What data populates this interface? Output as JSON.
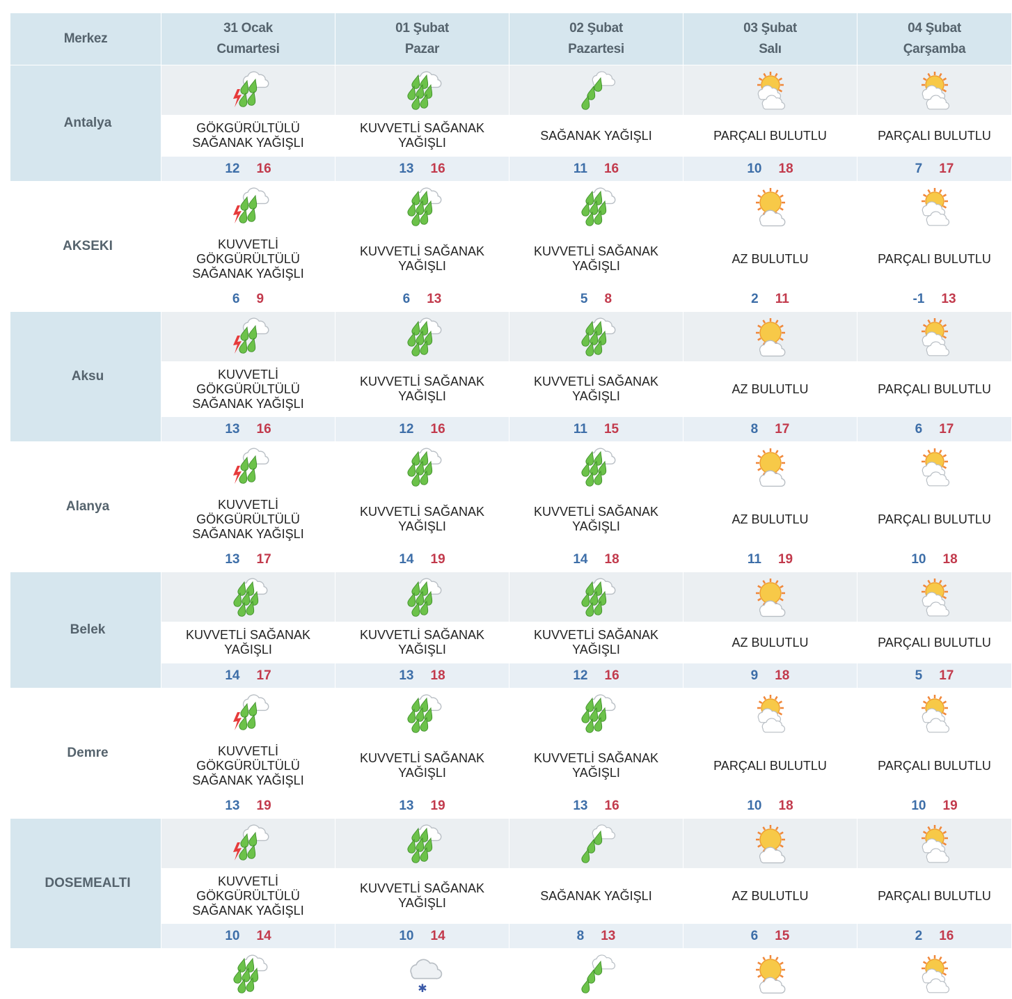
{
  "header": {
    "location_label": "Merkez",
    "days": [
      {
        "date": "31 Ocak",
        "weekday": "Cumartesi"
      },
      {
        "date": "01 Şubat",
        "weekday": "Pazar"
      },
      {
        "date": "02 Şubat",
        "weekday": "Pazartesi"
      },
      {
        "date": "03 Şubat",
        "weekday": "Salı"
      },
      {
        "date": "04 Şubat",
        "weekday": "Çarşamba"
      }
    ]
  },
  "rows": [
    {
      "city": "Antalya",
      "days": [
        {
          "icon": "thunder-rain",
          "cond": "GÖKGÜRÜLTÜLÜ SAĞANAK YAĞIŞLI",
          "min": "12",
          "max": "16"
        },
        {
          "icon": "heavy-rain",
          "cond": "KUVVETLİ SAĞANAK YAĞIŞLI",
          "min": "13",
          "max": "16"
        },
        {
          "icon": "shower",
          "cond": "SAĞANAK YAĞIŞLI",
          "min": "11",
          "max": "16"
        },
        {
          "icon": "partly-cloudy",
          "cond": "PARÇALI BULUTLU",
          "min": "10",
          "max": "18"
        },
        {
          "icon": "partly-cloudy",
          "cond": "PARÇALI BULUTLU",
          "min": "7",
          "max": "17"
        }
      ]
    },
    {
      "city": "AKSEKI",
      "days": [
        {
          "icon": "thunder-rain",
          "cond": "KUVVETLİ GÖKGÜRÜLTÜLÜ SAĞANAK YAĞIŞLI",
          "min": "6",
          "max": "9"
        },
        {
          "icon": "heavy-rain",
          "cond": "KUVVETLİ SAĞANAK YAĞIŞLI",
          "min": "6",
          "max": "13"
        },
        {
          "icon": "heavy-rain",
          "cond": "KUVVETLİ SAĞANAK YAĞIŞLI",
          "min": "5",
          "max": "8"
        },
        {
          "icon": "mostly-sunny",
          "cond": "AZ BULUTLU",
          "min": "2",
          "max": "11"
        },
        {
          "icon": "partly-cloudy",
          "cond": "PARÇALI BULUTLU",
          "min": "-1",
          "max": "13"
        }
      ]
    },
    {
      "city": "Aksu",
      "days": [
        {
          "icon": "thunder-rain",
          "cond": "KUVVETLİ GÖKGÜRÜLTÜLÜ SAĞANAK YAĞIŞLI",
          "min": "13",
          "max": "16"
        },
        {
          "icon": "heavy-rain",
          "cond": "KUVVETLİ SAĞANAK YAĞIŞLI",
          "min": "12",
          "max": "16"
        },
        {
          "icon": "heavy-rain",
          "cond": "KUVVETLİ SAĞANAK YAĞIŞLI",
          "min": "11",
          "max": "15"
        },
        {
          "icon": "mostly-sunny",
          "cond": "AZ BULUTLU",
          "min": "8",
          "max": "17"
        },
        {
          "icon": "partly-cloudy",
          "cond": "PARÇALI BULUTLU",
          "min": "6",
          "max": "17"
        }
      ]
    },
    {
      "city": "Alanya",
      "days": [
        {
          "icon": "thunder-rain",
          "cond": "KUVVETLİ GÖKGÜRÜLTÜLÜ SAĞANAK YAĞIŞLI",
          "min": "13",
          "max": "17"
        },
        {
          "icon": "heavy-rain",
          "cond": "KUVVETLİ SAĞANAK YAĞIŞLI",
          "min": "14",
          "max": "19"
        },
        {
          "icon": "heavy-rain",
          "cond": "KUVVETLİ SAĞANAK YAĞIŞLI",
          "min": "14",
          "max": "18"
        },
        {
          "icon": "mostly-sunny",
          "cond": "AZ BULUTLU",
          "min": "11",
          "max": "19"
        },
        {
          "icon": "partly-cloudy",
          "cond": "PARÇALI BULUTLU",
          "min": "10",
          "max": "18"
        }
      ]
    },
    {
      "city": "Belek",
      "days": [
        {
          "icon": "heavy-rain",
          "cond": "KUVVETLİ SAĞANAK YAĞIŞLI",
          "min": "14",
          "max": "17"
        },
        {
          "icon": "heavy-rain",
          "cond": "KUVVETLİ SAĞANAK YAĞIŞLI",
          "min": "13",
          "max": "18"
        },
        {
          "icon": "heavy-rain",
          "cond": "KUVVETLİ SAĞANAK YAĞIŞLI",
          "min": "12",
          "max": "16"
        },
        {
          "icon": "mostly-sunny",
          "cond": "AZ BULUTLU",
          "min": "9",
          "max": "18"
        },
        {
          "icon": "partly-cloudy",
          "cond": "PARÇALI BULUTLU",
          "min": "5",
          "max": "17"
        }
      ]
    },
    {
      "city": "Demre",
      "days": [
        {
          "icon": "thunder-rain",
          "cond": "KUVVETLİ GÖKGÜRÜLTÜLÜ SAĞANAK YAĞIŞLI",
          "min": "13",
          "max": "19"
        },
        {
          "icon": "heavy-rain",
          "cond": "KUVVETLİ SAĞANAK YAĞIŞLI",
          "min": "13",
          "max": "19"
        },
        {
          "icon": "heavy-rain",
          "cond": "KUVVETLİ SAĞANAK YAĞIŞLI",
          "min": "13",
          "max": "16"
        },
        {
          "icon": "partly-cloudy",
          "cond": "PARÇALI BULUTLU",
          "min": "10",
          "max": "18"
        },
        {
          "icon": "partly-cloudy",
          "cond": "PARÇALI BULUTLU",
          "min": "10",
          "max": "19"
        }
      ]
    },
    {
      "city": "DOSEMEALTI",
      "days": [
        {
          "icon": "thunder-rain",
          "cond": "KUVVETLİ GÖKGÜRÜLTÜLÜ SAĞANAK YAĞIŞLI",
          "min": "10",
          "max": "14"
        },
        {
          "icon": "heavy-rain",
          "cond": "KUVVETLİ SAĞANAK YAĞIŞLI",
          "min": "10",
          "max": "14"
        },
        {
          "icon": "shower",
          "cond": "SAĞANAK YAĞIŞLI",
          "min": "8",
          "max": "13"
        },
        {
          "icon": "mostly-sunny",
          "cond": "AZ BULUTLU",
          "min": "6",
          "max": "15"
        },
        {
          "icon": "partly-cloudy",
          "cond": "PARÇALI BULUTLU",
          "min": "2",
          "max": "16"
        }
      ]
    }
  ],
  "partial_row_icons": [
    "heavy-rain",
    "snow",
    "shower",
    "mostly-sunny",
    "partly-cloudy"
  ],
  "colors": {
    "header_bg": "#d6e6ee",
    "min_temp": "#3d6ea8",
    "max_temp": "#c23a4c"
  }
}
